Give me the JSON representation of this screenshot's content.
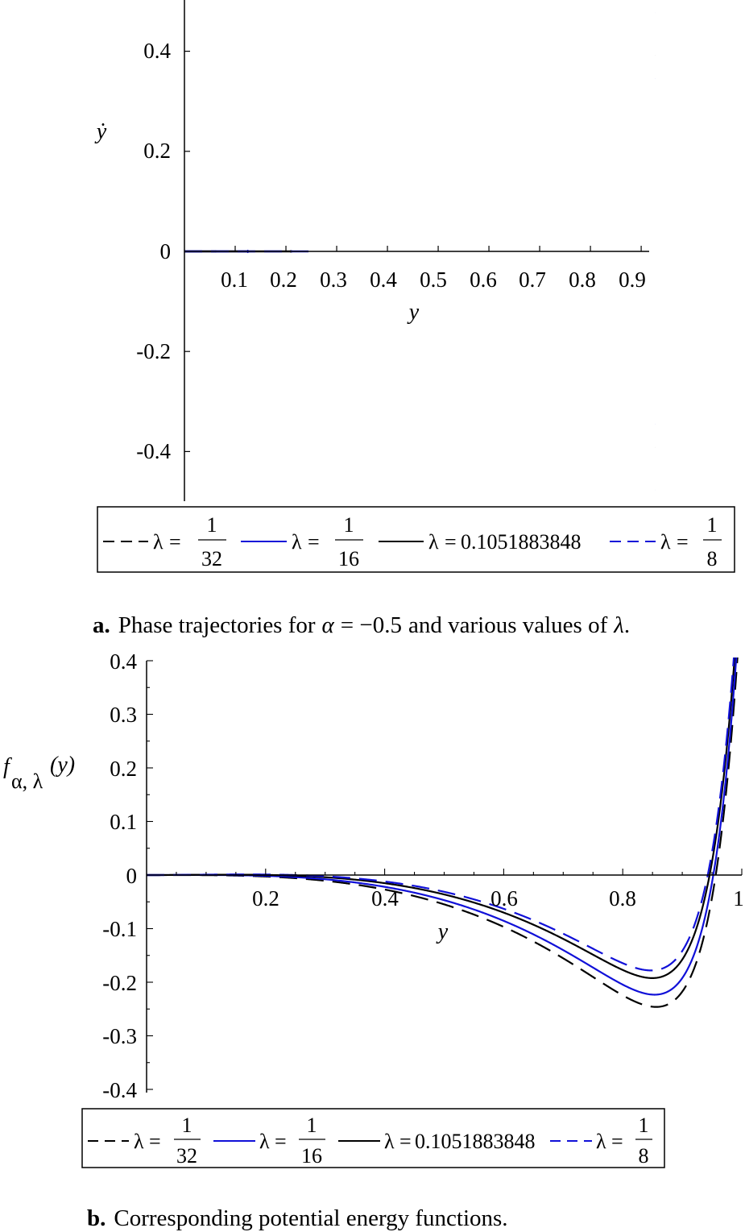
{
  "colors": {
    "black": "#000000",
    "blue": "#1010d8"
  },
  "chart_data": [
    {
      "type": "line",
      "title": "",
      "xlabel": "y",
      "ylabel": "ẏ",
      "xlim": [
        0,
        0.93
      ],
      "ylim": [
        -0.5,
        0.5
      ],
      "x_ticks": [
        "0.1",
        "0.2",
        "0.3",
        "0.4",
        "0.5",
        "0.6",
        "0.7",
        "0.8",
        "0.9"
      ],
      "y_ticks": [
        "0.4",
        "0.2",
        "0",
        "-0.2",
        "-0.4"
      ],
      "legend_position": "bottom",
      "series": [
        {
          "name": "λ = 1/32",
          "lambda": 0.03125,
          "color": "#000000",
          "style": "dashed"
        },
        {
          "name": "λ = 1/16",
          "lambda": 0.0625,
          "color": "#1010d8",
          "style": "solid"
        },
        {
          "name": "λ = 0.1051883848",
          "lambda": 0.1051883848,
          "color": "#000000",
          "style": "solid"
        },
        {
          "name": "λ = 1/8",
          "lambda": 0.125,
          "color": "#1010d8",
          "style": "dashed"
        }
      ]
    },
    {
      "type": "line",
      "title": "",
      "xlabel": "y",
      "ylabel": "f_{α, λ}(y)",
      "xlim": [
        0,
        1
      ],
      "ylim": [
        -0.4,
        0.4
      ],
      "x_ticks": [
        "0.2",
        "0.4",
        "0.6",
        "0.8",
        "1"
      ],
      "y_ticks": [
        "0.4",
        "0.3",
        "0.2",
        "0.1",
        "0",
        "-0.1",
        "-0.2",
        "-0.3",
        "-0.4"
      ],
      "legend_position": "bottom",
      "series": [
        {
          "name": "λ = 1/32",
          "lambda": 0.03125,
          "color": "#000000",
          "style": "dashed"
        },
        {
          "name": "λ = 1/16",
          "lambda": 0.0625,
          "color": "#1010d8",
          "style": "solid"
        },
        {
          "name": "λ = 0.1051883848",
          "lambda": 0.1051883848,
          "color": "#000000",
          "style": "solid"
        },
        {
          "name": "λ = 1/8",
          "lambda": 0.125,
          "color": "#1010d8",
          "style": "dashed"
        }
      ]
    }
  ],
  "legend": {
    "lambda_symbol": "λ",
    "equals": "=",
    "one": "1",
    "d32": "32",
    "d16": "16",
    "d8": "8",
    "value3": "0.1051883848"
  },
  "captions": {
    "a_label": "a.",
    "a_text1": "Phase trajectories for",
    "a_alpha": "α",
    "a_eq": "= −0.5",
    "a_text2": "and various values of",
    "a_lambda": "λ",
    "a_end": ".",
    "b_label": "b.",
    "b_text": "Corresponding potential energy functions."
  },
  "panel_b_ylabel": {
    "f": "f",
    "sub": "α, λ",
    "arg": "(y)"
  }
}
